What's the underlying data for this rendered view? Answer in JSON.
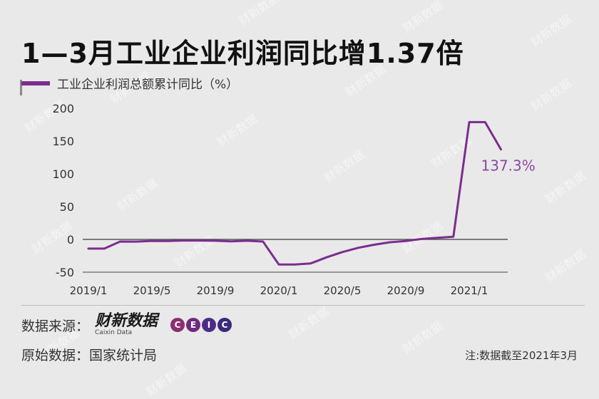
{
  "title": "1—3月工业企业利润同比增1.37倍",
  "legend": {
    "label": "工业企业利润总额累计同比（%）",
    "color": "#7b2d8e"
  },
  "annotation": {
    "text": "137.3%",
    "color": "#8a4aa0"
  },
  "source": {
    "label": "数据来源：",
    "brand_cn": "财新数据",
    "brand_en": "Caixin Data",
    "ceic_letters": [
      "C",
      "E",
      "I",
      "C"
    ]
  },
  "original": {
    "label": "原始数据：国家统计局"
  },
  "note": "注:数据截至2021年3月",
  "watermark": "财新数据",
  "chart_data": {
    "type": "line",
    "title": "1—3月工业企业利润同比增1.37倍",
    "xlabel": "",
    "ylabel": "",
    "ylim": [
      -50,
      200
    ],
    "yticks": [
      200,
      150,
      100,
      50,
      0,
      -50
    ],
    "xtick_labels": [
      "2019/1",
      "2019/5",
      "2019/9",
      "2020/1",
      "2020/5",
      "2020/9",
      "2021/1"
    ],
    "x": [
      "2019/1",
      "2019/2",
      "2019/3",
      "2019/4",
      "2019/5",
      "2019/6",
      "2019/7",
      "2019/8",
      "2019/9",
      "2019/10",
      "2019/11",
      "2019/12",
      "2020/1",
      "2020/2",
      "2020/3",
      "2020/4",
      "2020/5",
      "2020/6",
      "2020/7",
      "2020/8",
      "2020/9",
      "2020/10",
      "2020/11",
      "2020/12",
      "2021/1",
      "2021/2",
      "2021/3"
    ],
    "grid": false,
    "legend_position": "top-left",
    "series": [
      {
        "name": "工业企业利润总额累计同比（%）",
        "values": [
          -14,
          -14,
          -3.3,
          -3.4,
          -2.3,
          -2.4,
          -1.7,
          -1.7,
          -2.1,
          -2.9,
          -2.1,
          -3.3,
          -38.3,
          -38.3,
          -36.7,
          -27.4,
          -19.3,
          -12.8,
          -8.1,
          -4.4,
          -2.4,
          0.7,
          2.4,
          4.1,
          178.9,
          178.9,
          137.3
        ]
      }
    ]
  }
}
